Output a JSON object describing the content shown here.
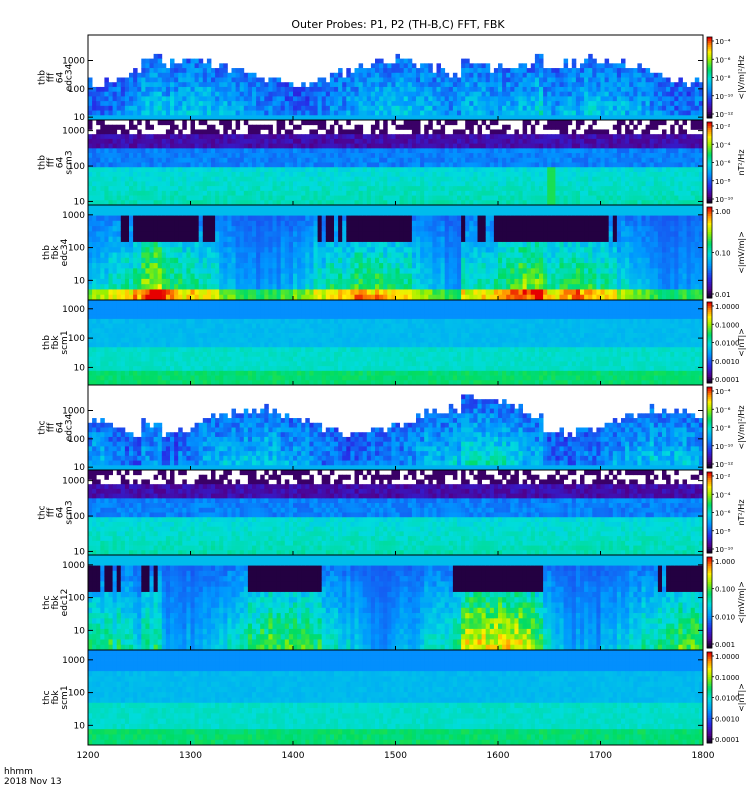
{
  "chart_data": {
    "type": "heatmap",
    "title": "Outer Probes: P1, P2 (TH-B,C) FFT, FBK",
    "x_axis": {
      "ticks": [
        "1200",
        "1300",
        "1400",
        "1500",
        "1600",
        "1700",
        "1800"
      ],
      "range": [
        1200,
        1800
      ],
      "label_line1": "hhmm",
      "label_line2": "2018 Nov 13"
    },
    "panels": [
      {
        "name": "thb-fff-64-edc34",
        "ylabel_lines": [
          "thb",
          "fff",
          "64",
          "edc34"
        ],
        "yticks": [
          "10",
          "100",
          "1000"
        ],
        "ylog": [
          0.9,
          3.9
        ],
        "cbar_unit": "<|V/m|²/Hz",
        "cbar_ticks": [
          "10⁻⁴",
          "10⁻⁶",
          "10⁻⁸",
          "10⁻¹⁰",
          "10⁻¹²"
        ],
        "cbar_range_exp": [
          -13,
          -3.5
        ],
        "profile": "fff_e",
        "seed": 11
      },
      {
        "name": "thb-fff-64-scm3",
        "ylabel_lines": [
          "thb",
          "fff",
          "64",
          "scm3"
        ],
        "yticks": [
          "10",
          "100",
          "1000"
        ],
        "ylog": [
          0.9,
          3.3
        ],
        "cbar_unit": "nT²/Hz",
        "cbar_ticks": [
          "10⁻²",
          "10⁻⁴",
          "10⁻⁶",
          "10⁻⁸",
          "10⁻¹⁰"
        ],
        "cbar_range_exp": [
          -10.5,
          -1.5
        ],
        "profile": "fff_b",
        "seed": 23
      },
      {
        "name": "thb-fbk-edc34",
        "ylabel_lines": [
          "thb",
          "fbk",
          "edc34"
        ],
        "yticks": [
          "10",
          "100",
          "1000"
        ],
        "ylog": [
          0.4,
          3.3
        ],
        "cbar_unit": "<|mV/m|>",
        "cbar_ticks": [
          "1.00",
          "0.10",
          "0.01"
        ],
        "cbar_range_exp": [
          -2.4,
          0.3
        ],
        "profile": "fbk_e",
        "seed": 37
      },
      {
        "name": "thb-fbk-scm1",
        "ylabel_lines": [
          "thb",
          "fbk",
          "scm1"
        ],
        "yticks": [
          "10",
          "100",
          "1000"
        ],
        "ylog": [
          0.4,
          3.3
        ],
        "cbar_unit": "<|nT|>",
        "cbar_ticks": [
          "1.0000",
          "0.1000",
          "0.0100",
          "0.0010",
          "0.0001"
        ],
        "cbar_range_exp": [
          -4.3,
          0.2
        ],
        "profile": "fbk_b",
        "seed": 41
      },
      {
        "name": "thc-fff-64-edc34",
        "ylabel_lines": [
          "thc",
          "fff",
          "64",
          "edc34"
        ],
        "yticks": [
          "10",
          "100",
          "1000"
        ],
        "ylog": [
          0.9,
          3.9
        ],
        "cbar_unit": "<|V/m|²/Hz",
        "cbar_ticks": [
          "10⁻⁴",
          "10⁻⁶",
          "10⁻⁸",
          "10⁻¹⁰",
          "10⁻¹²"
        ],
        "cbar_range_exp": [
          -13,
          -3.5
        ],
        "profile": "fff_e",
        "seed": 53
      },
      {
        "name": "thc-fff-64-scm3",
        "ylabel_lines": [
          "thc",
          "fff",
          "64",
          "scm3"
        ],
        "yticks": [
          "10",
          "100",
          "1000"
        ],
        "ylog": [
          0.9,
          3.3
        ],
        "cbar_unit": "nT²/Hz",
        "cbar_ticks": [
          "10⁻²",
          "10⁻⁴",
          "10⁻⁶",
          "10⁻⁸",
          "10⁻¹⁰"
        ],
        "cbar_range_exp": [
          -10.5,
          -1.5
        ],
        "profile": "fff_b2",
        "seed": 61
      },
      {
        "name": "thc-fbk-edc12",
        "ylabel_lines": [
          "thc",
          "fbk",
          "edc12"
        ],
        "yticks": [
          "10",
          "100",
          "1000"
        ],
        "ylog": [
          0.4,
          3.3
        ],
        "cbar_unit": "<|mV/m|>",
        "cbar_ticks": [
          "1.000",
          "0.100",
          "0.010",
          "0.001"
        ],
        "cbar_range_exp": [
          -3.1,
          0.3
        ],
        "profile": "fbk_e2",
        "seed": 71
      },
      {
        "name": "thc-fbk-scm1",
        "ylabel_lines": [
          "thc",
          "fbk",
          "scm1"
        ],
        "yticks": [
          "10",
          "100",
          "1000"
        ],
        "ylog": [
          0.4,
          3.3
        ],
        "cbar_unit": "<|nT|>",
        "cbar_ticks": [
          "1.0000",
          "0.1000",
          "0.0100",
          "0.0010",
          "0.0001"
        ],
        "cbar_range_exp": [
          -4.3,
          0.2
        ],
        "profile": "fbk_b2",
        "seed": 83
      }
    ]
  }
}
